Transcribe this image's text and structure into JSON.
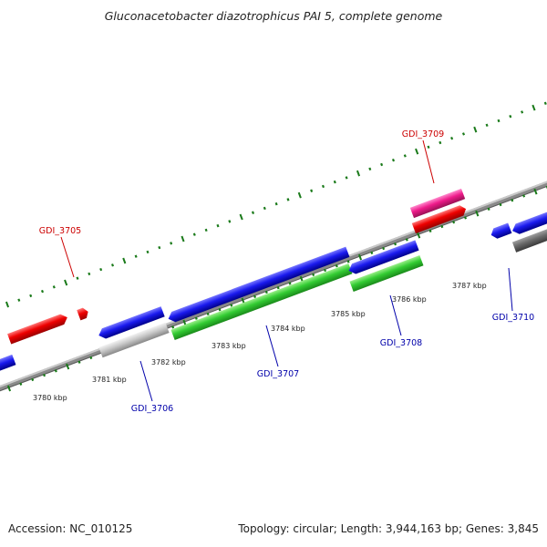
{
  "title": "Gluconacetobacter diazotrophicus PAI 5, complete genome",
  "footer": {
    "accession": "Accession: NC_010125",
    "summary": "Topology: circular; Length: 3,944,163 bp; Genes: 3,845"
  },
  "colors": {
    "forward_label": "#cc0000",
    "reverse_label": "#0000aa",
    "tick": "#1a7a1a",
    "backbone": "#8a8a8a"
  },
  "kbp_labels": [
    "3780 kbp",
    "3781 kbp",
    "3782 kbp",
    "3783 kbp",
    "3784 kbp",
    "3785 kbp",
    "3786 kbp",
    "3787 kbp"
  ],
  "gene_labels": [
    {
      "text": "GDI_3705",
      "strand": "forward"
    },
    {
      "text": "GDI_3709",
      "strand": "forward"
    },
    {
      "text": "GDI_3706",
      "strand": "reverse"
    },
    {
      "text": "GDI_3707",
      "strand": "reverse"
    },
    {
      "text": "GDI_3708",
      "strand": "reverse"
    },
    {
      "text": "GDI_3710",
      "strand": "reverse"
    }
  ]
}
